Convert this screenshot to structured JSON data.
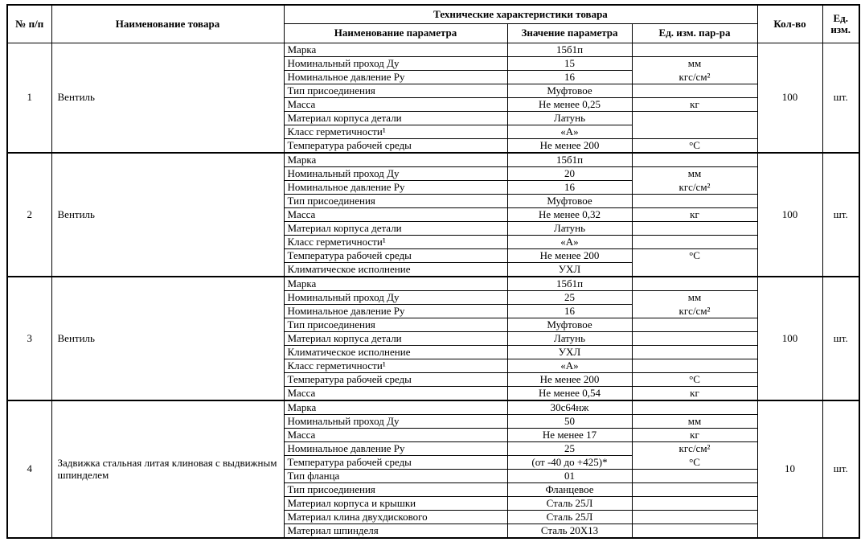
{
  "table": {
    "headers": {
      "num": "№ п/п",
      "product": "Наименование товара",
      "tech": "Технические характеристики товара",
      "param_name": "Наименование параметра",
      "param_value": "Значение параметра",
      "param_unit": "Ед. изм. пар-ра",
      "qty": "Кол-во",
      "unit": "Ед. изм."
    },
    "items": [
      {
        "num": "1",
        "name": "Вентиль",
        "qty": "100",
        "unit": "шт.",
        "params": [
          {
            "name": "Марка",
            "value": "15б1п",
            "unit": ""
          },
          {
            "name": "Номинальный проход Ду",
            "value": "15",
            "unit": "мм",
            "unit_border_hidden": true
          },
          {
            "name": "Номинальное давление Ру",
            "value": "16",
            "unit": "кгс/см²"
          },
          {
            "name": "Тип присоединения",
            "value": "Муфтовое",
            "unit": ""
          },
          {
            "name": "Масса",
            "value": "Не менее 0,25",
            "unit": "кг"
          },
          {
            "name": "Материал корпуса детали",
            "value": "Латунь",
            "unit": "",
            "unit_border_hidden": true
          },
          {
            "name": "Класс герметичности¹",
            "value": "«А»",
            "unit": ""
          },
          {
            "name": "Температура рабочей среды",
            "value": "Не менее 200",
            "unit": "°С"
          }
        ]
      },
      {
        "num": "2",
        "name": "Вентиль",
        "qty": "100",
        "unit": "шт.",
        "params": [
          {
            "name": "Марка",
            "value": "15б1п",
            "unit": ""
          },
          {
            "name": "Номинальный проход Ду",
            "value": "20",
            "unit": "мм",
            "unit_border_hidden": true
          },
          {
            "name": "Номинальное давление Ру",
            "value": "16",
            "unit": "кгс/см²"
          },
          {
            "name": "Тип присоединения",
            "value": "Муфтовое",
            "unit": ""
          },
          {
            "name": "Масса",
            "value": "Не менее 0,32",
            "unit": "кг"
          },
          {
            "name": "Материал корпуса детали",
            "value": "Латунь",
            "unit": ""
          },
          {
            "name": "Класс герметичности¹",
            "value": "«А»",
            "unit": ""
          },
          {
            "name": "Температура рабочей среды",
            "value": "Не менее 200",
            "unit": "°С",
            "unit_border_hidden": true
          },
          {
            "name": "Климатическое исполнение",
            "value": "УХЛ",
            "unit": ""
          }
        ]
      },
      {
        "num": "3",
        "name": "Вентиль",
        "qty": "100",
        "unit": "шт.",
        "params": [
          {
            "name": "Марка",
            "value": "15б1п",
            "unit": ""
          },
          {
            "name": "Номинальный проход Ду",
            "value": "25",
            "unit": "мм",
            "unit_border_hidden": true
          },
          {
            "name": "Номинальное давление Ру",
            "value": "16",
            "unit": "кгс/см²"
          },
          {
            "name": "Тип присоединения",
            "value": "Муфтовое",
            "unit": ""
          },
          {
            "name": "Материал корпуса детали",
            "value": "Латунь",
            "unit": ""
          },
          {
            "name": "Климатическое исполнение",
            "value": "УХЛ",
            "unit": ""
          },
          {
            "name": "Класс герметичности¹",
            "value": "«А»",
            "unit": ""
          },
          {
            "name": "Температура рабочей среды",
            "value": "Не менее 200",
            "unit": "°С"
          },
          {
            "name": "Масса",
            "value": "Не менее 0,54",
            "unit": "кг"
          }
        ]
      },
      {
        "num": "4",
        "name": "Задвижка стальная литая клиновая с выдвижным шпинделем",
        "qty": "10",
        "unit": "шт.",
        "params": [
          {
            "name": "Марка",
            "value": "30с64нж",
            "unit": ""
          },
          {
            "name": "Номинальный проход Ду",
            "value": "50",
            "unit": "мм"
          },
          {
            "name": "Масса",
            "value": "Не менее 17",
            "unit": "кг"
          },
          {
            "name": "Номинальное давление Ру",
            "value": "25",
            "unit": "кгс/см²",
            "unit_border_hidden": true
          },
          {
            "name": "Температура рабочей среды",
            "value": "(от -40 до +425)*",
            "unit": "°С"
          },
          {
            "name": "Тип фланца",
            "value": "01",
            "unit": ""
          },
          {
            "name": "Тип присоединения",
            "value": "Фланцевое",
            "unit": ""
          },
          {
            "name": "Материал корпуса и крышки",
            "value": "Сталь 25Л",
            "unit": ""
          },
          {
            "name": "Материал клина двухдискового",
            "value": "Сталь 25Л",
            "unit": ""
          },
          {
            "name": "Материал шпинделя",
            "value": "Сталь 20Х13",
            "unit": ""
          }
        ]
      }
    ]
  }
}
